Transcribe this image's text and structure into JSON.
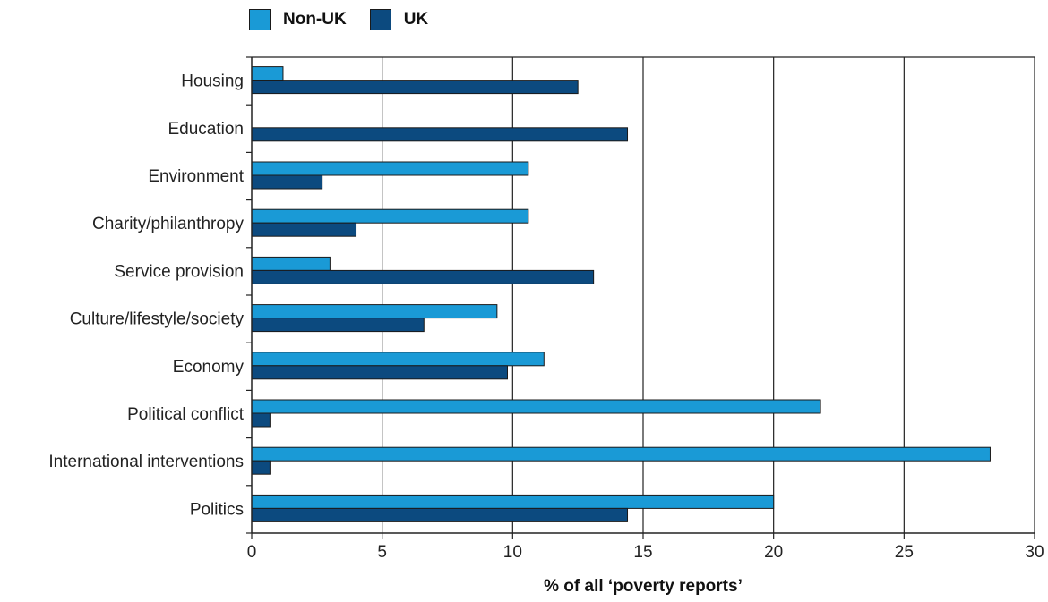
{
  "chart_data": {
    "type": "bar",
    "orientation": "horizontal",
    "categories": [
      "Housing",
      "Education",
      "Environment",
      "Charity/philanthropy",
      "Service provision",
      "Culture/lifestyle/society",
      "Economy",
      "Political conflict",
      "International interventions",
      "Politics"
    ],
    "series": [
      {
        "name": "Non-UK",
        "color": "#1a9ad6",
        "values": [
          1.2,
          0,
          10.6,
          10.6,
          3.0,
          9.4,
          11.2,
          21.8,
          28.3,
          20.0
        ]
      },
      {
        "name": "UK",
        "color": "#0c4a7f",
        "values": [
          12.5,
          14.4,
          2.7,
          4.0,
          13.1,
          6.6,
          9.8,
          0.7,
          0.7,
          14.4
        ]
      }
    ],
    "xlabel": "% of all ‘poverty reports’",
    "ylabel": "",
    "xlim": [
      0,
      30
    ],
    "xticks": [
      0,
      5,
      10,
      15,
      20,
      25,
      30
    ],
    "grid": "vertical",
    "legend": "top-left"
  }
}
